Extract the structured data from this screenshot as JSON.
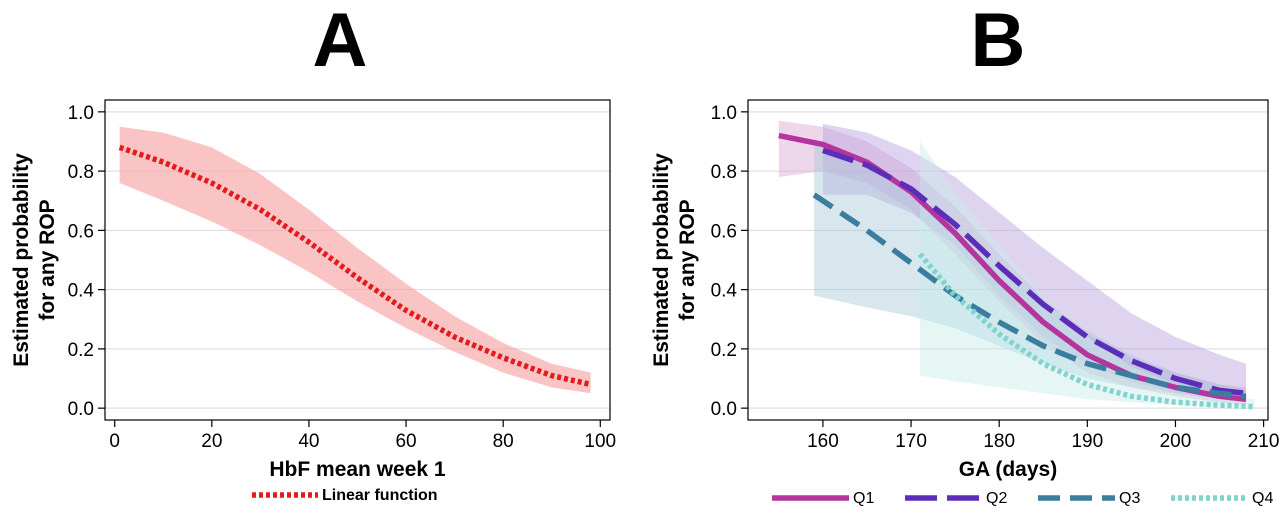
{
  "chart_data": [
    {
      "panel": "A",
      "type": "line",
      "title": "",
      "xlabel": "HbF mean week 1",
      "ylabel_lines": [
        "Estimated probability",
        "for any ROP"
      ],
      "xlim": [
        -2,
        102
      ],
      "ylim": [
        -0.04,
        1.04
      ],
      "xticks": [
        0,
        20,
        40,
        60,
        80,
        100
      ],
      "yticks": [
        "0.0",
        "0.2",
        "0.4",
        "0.6",
        "0.8",
        "1.0"
      ],
      "ytick_values": [
        0,
        0.2,
        0.4,
        0.6,
        0.8,
        1.0
      ],
      "grid": "horizontal",
      "legend_placement": "bottom",
      "series": [
        {
          "name": "Linear function",
          "color": "#e41a1c",
          "band_color": "#f8a5a5",
          "dash": "dotted",
          "x": [
            1,
            10,
            20,
            30,
            40,
            50,
            60,
            70,
            80,
            90,
            98
          ],
          "y": [
            0.88,
            0.83,
            0.76,
            0.67,
            0.56,
            0.44,
            0.33,
            0.24,
            0.17,
            0.11,
            0.08
          ],
          "lower": [
            0.76,
            0.7,
            0.63,
            0.55,
            0.46,
            0.36,
            0.27,
            0.19,
            0.12,
            0.07,
            0.05
          ],
          "upper": [
            0.95,
            0.93,
            0.88,
            0.79,
            0.67,
            0.54,
            0.42,
            0.31,
            0.22,
            0.15,
            0.12
          ]
        }
      ]
    },
    {
      "panel": "B",
      "type": "line",
      "title": "",
      "xlabel": "GA (days)",
      "ylabel_lines": [
        "Estimated probability",
        "for any ROP"
      ],
      "xlim": [
        151.5,
        210.5
      ],
      "ylim": [
        -0.04,
        1.04
      ],
      "xticks": [
        160,
        170,
        180,
        190,
        200,
        210
      ],
      "yticks": [
        "0.0",
        "0.2",
        "0.4",
        "0.6",
        "0.8",
        "1.0"
      ],
      "ytick_values": [
        0,
        0.2,
        0.4,
        0.6,
        0.8,
        1.0
      ],
      "grid": "horizontal",
      "legend_placement": "bottom",
      "series": [
        {
          "name": "Q1",
          "color": "#b5359e",
          "band_color": "#dba7d2",
          "dash": "solid",
          "x": [
            155,
            160,
            165,
            170,
            175,
            180,
            185,
            190,
            195,
            200,
            205,
            208
          ],
          "y": [
            0.92,
            0.89,
            0.83,
            0.73,
            0.59,
            0.43,
            0.29,
            0.18,
            0.11,
            0.07,
            0.04,
            0.03
          ],
          "lower": [
            0.78,
            0.8,
            0.76,
            0.67,
            0.52,
            0.36,
            0.22,
            0.12,
            0.07,
            0.04,
            0.02,
            0.01
          ],
          "upper": [
            0.97,
            0.95,
            0.9,
            0.81,
            0.68,
            0.52,
            0.37,
            0.25,
            0.17,
            0.12,
            0.08,
            0.07
          ]
        },
        {
          "name": "Q2",
          "color": "#5b2db8",
          "band_color": "#b9a0de",
          "dash": "longdash",
          "x": [
            160,
            165,
            170,
            175,
            180,
            185,
            190,
            195,
            200,
            205,
            208
          ],
          "y": [
            0.87,
            0.82,
            0.74,
            0.62,
            0.48,
            0.35,
            0.24,
            0.16,
            0.1,
            0.06,
            0.05
          ],
          "lower": [
            0.72,
            0.72,
            0.66,
            0.55,
            0.38,
            0.24,
            0.15,
            0.09,
            0.05,
            0.03,
            0.02
          ],
          "upper": [
            0.96,
            0.93,
            0.87,
            0.78,
            0.66,
            0.54,
            0.43,
            0.32,
            0.24,
            0.18,
            0.15
          ]
        },
        {
          "name": "Q3",
          "color": "#3a7d9f",
          "band_color": "#a8c9d9",
          "dash": "dashed",
          "x": [
            159,
            165,
            170,
            175,
            180,
            185,
            190,
            195,
            200,
            205,
            208
          ],
          "y": [
            0.72,
            0.6,
            0.49,
            0.38,
            0.29,
            0.21,
            0.15,
            0.11,
            0.07,
            0.05,
            0.04
          ],
          "lower": [
            0.38,
            0.34,
            0.31,
            0.27,
            0.21,
            0.15,
            0.1,
            0.07,
            0.05,
            0.03,
            0.02
          ],
          "upper": [
            0.91,
            0.82,
            0.72,
            0.6,
            0.48,
            0.36,
            0.26,
            0.18,
            0.12,
            0.08,
            0.06
          ]
        },
        {
          "name": "Q4",
          "color": "#7fd4d0",
          "band_color": "#c7ece9",
          "dash": "dotted",
          "x": [
            171,
            175,
            180,
            185,
            190,
            195,
            200,
            205,
            209
          ],
          "y": [
            0.52,
            0.38,
            0.25,
            0.15,
            0.08,
            0.04,
            0.02,
            0.01,
            0.005
          ],
          "lower": [
            0.11,
            0.09,
            0.07,
            0.05,
            0.03,
            0.02,
            0.01,
            0.005,
            0.0
          ],
          "upper": [
            0.9,
            0.73,
            0.55,
            0.38,
            0.24,
            0.14,
            0.08,
            0.04,
            0.03
          ]
        }
      ]
    }
  ],
  "panels": {
    "a_label": "A",
    "b_label": "B"
  }
}
